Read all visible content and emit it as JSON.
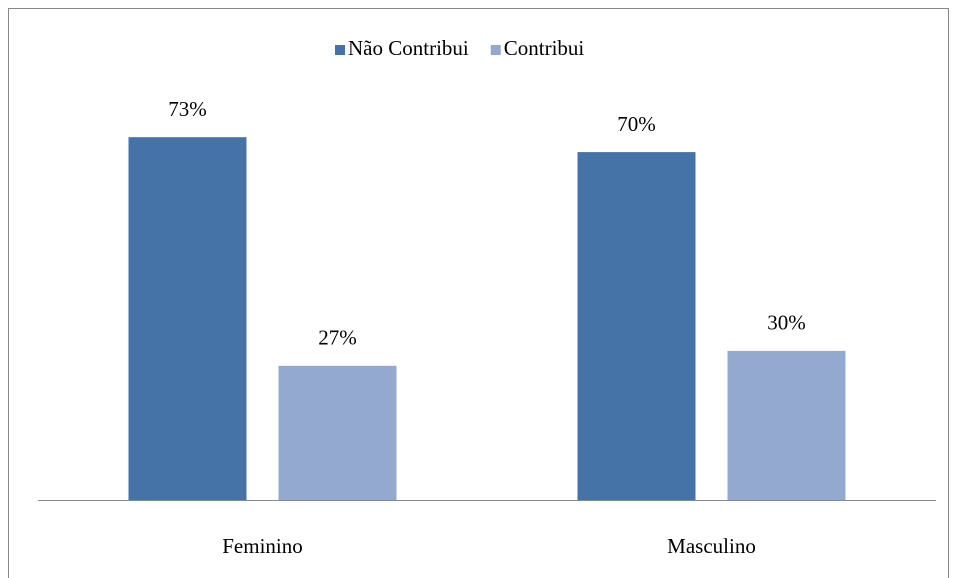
{
  "chart_data": {
    "type": "bar",
    "categories": [
      "Feminino",
      "Masculino"
    ],
    "series": [
      {
        "name": "Não Contribui",
        "color": "#4572a7",
        "values": [
          73,
          70
        ],
        "value_labels": [
          "73%",
          "70%"
        ]
      },
      {
        "name": "Contribui",
        "color": "#94a9d0",
        "values": [
          27,
          30
        ],
        "value_labels": [
          "27%",
          "30%"
        ]
      }
    ]
  }
}
